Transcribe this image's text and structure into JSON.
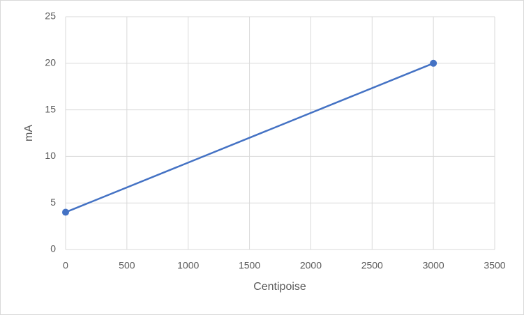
{
  "chart_data": {
    "type": "line",
    "x_label": "Centipoise",
    "y_label": "mA",
    "x": [
      0,
      3000
    ],
    "series": [
      {
        "name": "mA",
        "color": "#4472c4",
        "values": [
          4,
          20
        ]
      }
    ],
    "markers": true,
    "xlim": [
      0,
      3500
    ],
    "xticks": [
      0,
      500,
      1000,
      1500,
      2000,
      2500,
      3000,
      3500
    ],
    "ylim": [
      0,
      25
    ],
    "yticks": [
      0,
      5,
      10,
      15,
      20,
      25
    ],
    "grid": true
  }
}
